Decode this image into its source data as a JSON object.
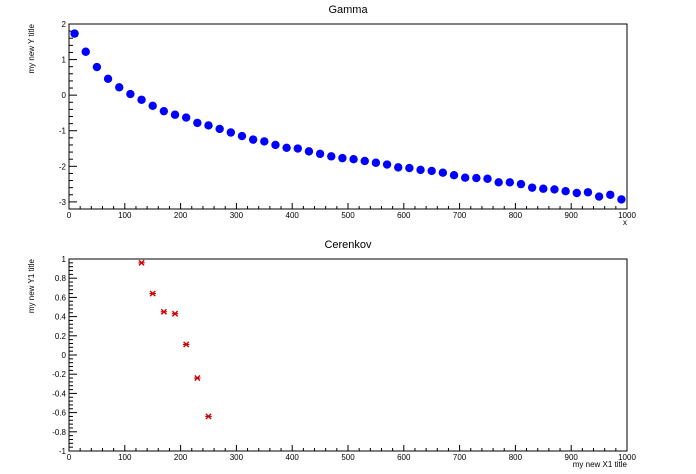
{
  "chart_data": [
    {
      "type": "scatter",
      "title": "Gamma",
      "xlabel": "x",
      "ylabel": "my new Y title",
      "xlim": [
        0,
        1000
      ],
      "ylim": [
        -3.2,
        2.0
      ],
      "xticks_major": [
        0,
        100,
        200,
        300,
        400,
        500,
        600,
        700,
        800,
        900,
        1000
      ],
      "yticks_major": [
        -3,
        -2,
        -1,
        0,
        1,
        2
      ],
      "grid": false,
      "marker_color": "#0000ff",
      "series": [
        {
          "x": [
            10,
            30,
            50,
            70,
            90,
            110,
            130,
            150,
            170,
            190,
            210,
            230,
            250,
            270,
            290,
            310,
            330,
            350,
            370,
            390,
            410,
            430,
            450,
            470,
            490,
            510,
            530,
            550,
            570,
            590,
            610,
            630,
            650,
            670,
            690,
            710,
            730,
            750,
            770,
            790,
            810,
            830,
            850,
            870,
            890,
            910,
            930,
            950,
            970,
            990
          ],
          "values": [
            1.73,
            1.22,
            0.79,
            0.46,
            0.22,
            0.03,
            -0.13,
            -0.3,
            -0.45,
            -0.55,
            -0.63,
            -0.78,
            -0.85,
            -0.95,
            -1.05,
            -1.15,
            -1.25,
            -1.3,
            -1.4,
            -1.48,
            -1.5,
            -1.58,
            -1.65,
            -1.72,
            -1.77,
            -1.8,
            -1.85,
            -1.9,
            -1.95,
            -2.03,
            -2.05,
            -2.1,
            -2.13,
            -2.18,
            -2.25,
            -2.32,
            -2.33,
            -2.35,
            -2.45,
            -2.45,
            -2.5,
            -2.6,
            -2.63,
            -2.65,
            -2.7,
            -2.75,
            -2.73,
            -2.85,
            -2.8,
            -2.93
          ]
        }
      ]
    },
    {
      "type": "scatter",
      "title": "Cerenkov",
      "xlabel": "my new X1 title",
      "ylabel": "my new Y1 title",
      "xlim": [
        0,
        1000
      ],
      "ylim": [
        -1.0,
        1.0
      ],
      "xticks_major": [
        0,
        100,
        200,
        300,
        400,
        500,
        600,
        700,
        800,
        900,
        1000
      ],
      "yticks_major": [
        -1,
        -0.8,
        -0.6,
        -0.4,
        -0.2,
        0,
        0.2,
        0.4,
        0.6,
        0.8,
        1
      ],
      "grid": false,
      "marker_color": "#cc0000",
      "series": [
        {
          "x": [
            130,
            150,
            170,
            190,
            210,
            230,
            250
          ],
          "values": [
            0.96,
            0.64,
            0.45,
            0.43,
            0.11,
            -0.24,
            -0.64
          ]
        }
      ]
    }
  ]
}
